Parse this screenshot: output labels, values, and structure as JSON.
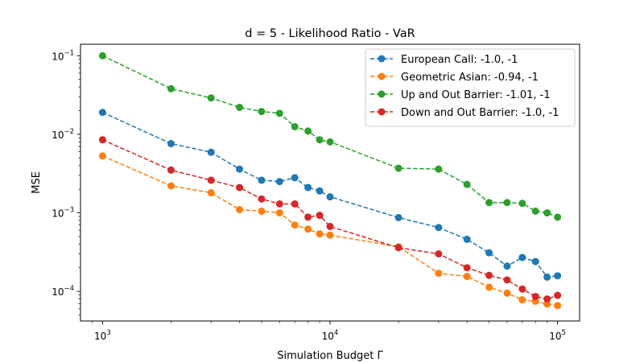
{
  "chart_data": {
    "type": "line",
    "title": "d = 5 - Likelihood Ratio - VaR",
    "xlabel": "Simulation Budget Γ",
    "ylabel": "MSE",
    "xscale": "log",
    "yscale": "log",
    "xlim": [
      800,
      125000
    ],
    "ylim": [
      4.2e-05,
      0.14
    ],
    "x_ticks": [
      {
        "value": 1000,
        "base": "10",
        "exp": "3"
      },
      {
        "value": 10000,
        "base": "10",
        "exp": "4"
      },
      {
        "value": 100000,
        "base": "10",
        "exp": "5"
      }
    ],
    "y_ticks": [
      {
        "value": 0.0001,
        "base": "10",
        "exp": "−4"
      },
      {
        "value": 0.001,
        "base": "10",
        "exp": "−3"
      },
      {
        "value": 0.01,
        "base": "10",
        "exp": "−2"
      },
      {
        "value": 0.1,
        "base": "10",
        "exp": "−1"
      }
    ],
    "legend_position": "top-right",
    "x": [
      1000,
      2000,
      3000,
      4000,
      5000,
      6000,
      7000,
      8000,
      9000,
      10000,
      20000,
      30000,
      40000,
      50000,
      60000,
      70000,
      80000,
      90000,
      100000
    ],
    "series": [
      {
        "name": "European Call: -1.0, -1",
        "color": "#1f77b4",
        "values": [
          0.019,
          0.0076,
          0.0059,
          0.0036,
          0.0026,
          0.0025,
          0.0028,
          0.0021,
          0.0019,
          0.0016,
          0.00087,
          0.00065,
          0.00046,
          0.00031,
          0.00021,
          0.00027,
          0.00024,
          0.000152,
          0.000158
        ]
      },
      {
        "name": "Geometric Asian: -0.94, -1",
        "color": "#ff7f0e",
        "values": [
          0.0053,
          0.0022,
          0.0018,
          0.0011,
          0.00105,
          0.001,
          0.0007,
          0.00062,
          0.00054,
          0.00052,
          0.00037,
          0.00017,
          0.000155,
          0.000113,
          9.5e-05,
          7.8e-05,
          7.5e-05,
          6.9e-05,
          6.6e-05
        ]
      },
      {
        "name": "Up and Out Barrier: -1.01, -1",
        "color": "#2ca02c",
        "values": [
          0.1,
          0.038,
          0.029,
          0.022,
          0.0195,
          0.0185,
          0.0125,
          0.011,
          0.0085,
          0.008,
          0.0037,
          0.0036,
          0.0023,
          0.00135,
          0.00135,
          0.00132,
          0.00105,
          0.001,
          0.00088
        ]
      },
      {
        "name": "Down and Out Barrier: -1.0, -1",
        "color": "#d62728",
        "values": [
          0.0085,
          0.0035,
          0.0026,
          0.0021,
          0.0015,
          0.0013,
          0.0013,
          0.00088,
          0.00093,
          0.00067,
          0.00036,
          0.0003,
          0.0002,
          0.00016,
          0.00014,
          0.000107,
          8.6e-05,
          8e-05,
          8.9e-05
        ]
      }
    ]
  }
}
